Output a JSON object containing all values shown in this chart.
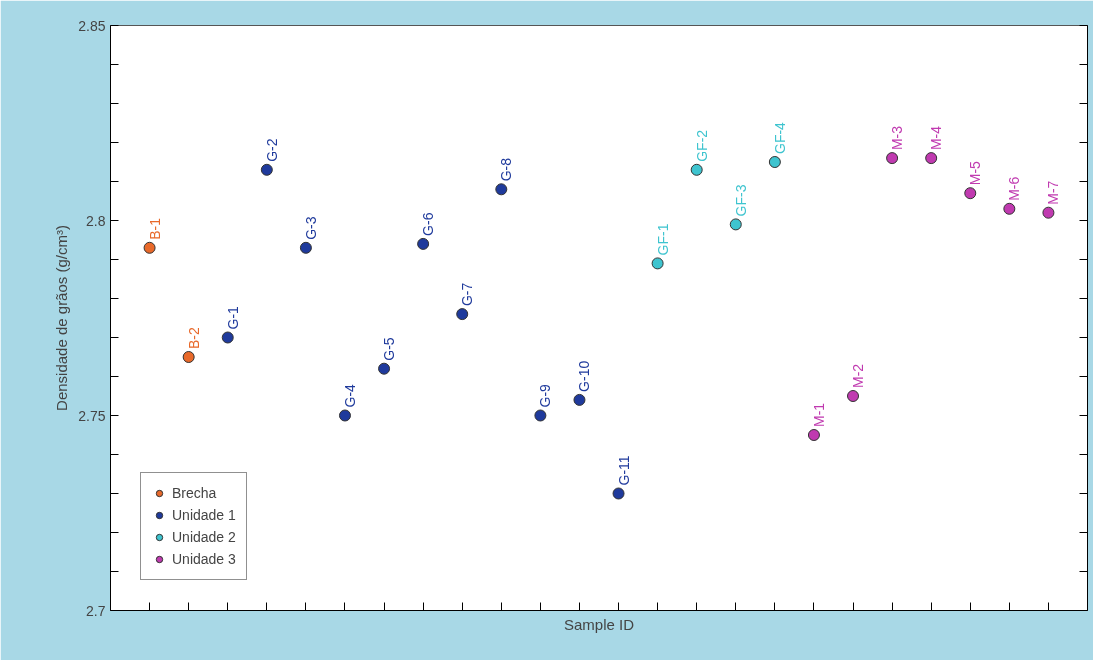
{
  "chart_data": {
    "type": "scatter",
    "xlabel": "Sample ID",
    "ylabel": "Densidade de grãos (g/cm³)",
    "categories": [
      "B-1",
      "B-2",
      "G-1",
      "G-2",
      "G-3",
      "G-4",
      "G-5",
      "G-6",
      "G-7",
      "G-8",
      "G-9",
      "G-10",
      "G-11",
      "GF-1",
      "GF-2",
      "GF-3",
      "GF-4",
      "M-1",
      "M-2",
      "M-3",
      "M-4",
      "M-5",
      "M-6",
      "M-7"
    ],
    "ylim": [
      2.7,
      2.85
    ],
    "yticks": [
      2.7,
      {
        "value": 2.71,
        "label": null
      },
      {
        "value": 2.72,
        "label": null
      },
      {
        "value": 2.73,
        "label": null
      },
      {
        "value": 2.74,
        "label": null
      },
      2.75,
      {
        "value": 2.76,
        "label": null
      },
      {
        "value": 2.77,
        "label": null
      },
      {
        "value": 2.78,
        "label": null
      },
      {
        "value": 2.79,
        "label": null
      },
      2.8,
      {
        "value": 2.81,
        "label": null
      },
      {
        "value": 2.82,
        "label": null
      },
      {
        "value": 2.83,
        "label": null
      },
      {
        "value": 2.84,
        "label": null
      },
      2.85
    ],
    "marker": "circle",
    "legend": "bottom left",
    "grid": false,
    "series": [
      {
        "name": "Brecha",
        "color": "#e8692a",
        "values": [
          2.793,
          2.765,
          null,
          null,
          null,
          null,
          null,
          null,
          null,
          null,
          null,
          null,
          null,
          null,
          null,
          null,
          null,
          null,
          null,
          null,
          null,
          null,
          null,
          null
        ]
      },
      {
        "name": "Unidade 1",
        "color": "#1f3a9c",
        "values": [
          null,
          null,
          2.77,
          2.813,
          2.793,
          2.75,
          2.762,
          2.794,
          2.776,
          2.808,
          2.75,
          2.754,
          2.73,
          null,
          null,
          null,
          null,
          null,
          null,
          null,
          null,
          null,
          null,
          null
        ]
      },
      {
        "name": "Unidade 2",
        "color": "#3ec4cf",
        "values": [
          null,
          null,
          null,
          null,
          null,
          null,
          null,
          null,
          null,
          null,
          null,
          null,
          null,
          2.789,
          2.813,
          2.799,
          2.815,
          null,
          null,
          null,
          null,
          null,
          null,
          null
        ]
      },
      {
        "name": "Unidade 3",
        "color": "#c03ab0",
        "values": [
          null,
          null,
          null,
          null,
          null,
          null,
          null,
          null,
          null,
          null,
          null,
          null,
          null,
          null,
          null,
          null,
          null,
          2.745,
          2.755,
          2.816,
          2.816,
          2.807,
          2.803,
          2.802
        ]
      }
    ]
  }
}
